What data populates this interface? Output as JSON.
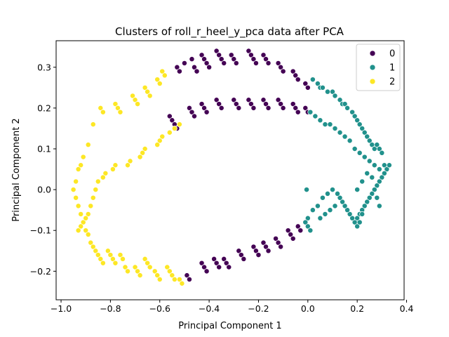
{
  "chart_data": {
    "type": "scatter",
    "title": "Clusters of roll_r_heel_y_pca data after PCA",
    "xlabel": "Principal Component 1",
    "ylabel": "Principal Component 2",
    "xlim": [
      -1.02,
      0.39
    ],
    "ylim": [
      -0.27,
      0.365
    ],
    "xticks": [
      -1.0,
      -0.8,
      -0.6,
      -0.4,
      -0.2,
      0.0,
      0.2,
      0.4
    ],
    "xtick_labels": [
      "−1.0",
      "−0.8",
      "−0.6",
      "−0.4",
      "−0.2",
      "0.0",
      "0.2",
      "0.4"
    ],
    "yticks": [
      -0.2,
      -0.1,
      0.0,
      0.1,
      0.2,
      0.3
    ],
    "ytick_labels": [
      "−0.2",
      "−0.1",
      "0.0",
      "0.1",
      "0.2",
      "0.3"
    ],
    "grid": false,
    "legend_position": "top-right",
    "series": [
      {
        "name": "0",
        "color": "#440154",
        "points": [
          [
            -0.53,
            0.3
          ],
          [
            -0.52,
            0.29
          ],
          [
            -0.5,
            0.31
          ],
          [
            -0.47,
            0.32
          ],
          [
            -0.46,
            0.3
          ],
          [
            -0.45,
            0.29
          ],
          [
            -0.43,
            0.33
          ],
          [
            -0.42,
            0.32
          ],
          [
            -0.41,
            0.31
          ],
          [
            -0.4,
            0.3
          ],
          [
            -0.37,
            0.34
          ],
          [
            -0.36,
            0.33
          ],
          [
            -0.35,
            0.32
          ],
          [
            -0.34,
            0.31
          ],
          [
            -0.31,
            0.33
          ],
          [
            -0.3,
            0.32
          ],
          [
            -0.29,
            0.31
          ],
          [
            -0.24,
            0.34
          ],
          [
            -0.23,
            0.33
          ],
          [
            -0.22,
            0.32
          ],
          [
            -0.21,
            0.31
          ],
          [
            -0.18,
            0.33
          ],
          [
            -0.17,
            0.32
          ],
          [
            -0.16,
            0.31
          ],
          [
            -0.12,
            0.31
          ],
          [
            -0.11,
            0.3
          ],
          [
            -0.1,
            0.29
          ],
          [
            -0.06,
            0.29
          ],
          [
            -0.05,
            0.28
          ],
          [
            -0.04,
            0.27
          ],
          [
            -0.01,
            0.26
          ],
          [
            0.0,
            0.25
          ],
          [
            -0.56,
            0.18
          ],
          [
            -0.55,
            0.17
          ],
          [
            -0.54,
            0.16
          ],
          [
            -0.53,
            0.15
          ],
          [
            -0.48,
            0.2
          ],
          [
            -0.47,
            0.19
          ],
          [
            -0.46,
            0.18
          ],
          [
            -0.43,
            0.21
          ],
          [
            -0.42,
            0.2
          ],
          [
            -0.41,
            0.19
          ],
          [
            -0.37,
            0.22
          ],
          [
            -0.36,
            0.21
          ],
          [
            -0.35,
            0.2
          ],
          [
            -0.3,
            0.22
          ],
          [
            -0.29,
            0.21
          ],
          [
            -0.28,
            0.2
          ],
          [
            -0.24,
            0.22
          ],
          [
            -0.23,
            0.21
          ],
          [
            -0.22,
            0.2
          ],
          [
            -0.18,
            0.22
          ],
          [
            -0.17,
            0.21
          ],
          [
            -0.16,
            0.2
          ],
          [
            -0.12,
            0.22
          ],
          [
            -0.11,
            0.21
          ],
          [
            -0.1,
            0.2
          ],
          [
            -0.06,
            0.21
          ],
          [
            -0.05,
            0.2
          ],
          [
            -0.04,
            0.19
          ],
          [
            -0.01,
            0.2
          ],
          [
            0.0,
            0.19
          ],
          [
            -0.49,
            -0.21
          ],
          [
            -0.48,
            -0.22
          ],
          [
            -0.43,
            -0.18
          ],
          [
            -0.42,
            -0.19
          ],
          [
            -0.41,
            -0.2
          ],
          [
            -0.38,
            -0.17
          ],
          [
            -0.37,
            -0.18
          ],
          [
            -0.36,
            -0.19
          ],
          [
            -0.34,
            -0.17
          ],
          [
            -0.33,
            -0.18
          ],
          [
            -0.32,
            -0.19
          ],
          [
            -0.28,
            -0.15
          ],
          [
            -0.27,
            -0.16
          ],
          [
            -0.26,
            -0.17
          ],
          [
            -0.22,
            -0.14
          ],
          [
            -0.21,
            -0.15
          ],
          [
            -0.2,
            -0.16
          ],
          [
            -0.18,
            -0.13
          ],
          [
            -0.17,
            -0.14
          ],
          [
            -0.16,
            -0.15
          ],
          [
            -0.13,
            -0.12
          ],
          [
            -0.12,
            -0.13
          ],
          [
            -0.11,
            -0.14
          ],
          [
            -0.08,
            -0.1
          ],
          [
            -0.07,
            -0.11
          ],
          [
            -0.06,
            -0.12
          ],
          [
            -0.04,
            -0.09
          ],
          [
            -0.03,
            -0.1
          ]
        ]
      },
      {
        "name": "1",
        "color": "#21918c",
        "points": [
          [
            0.02,
            0.27
          ],
          [
            0.04,
            0.26
          ],
          [
            0.05,
            0.25
          ],
          [
            0.06,
            0.25
          ],
          [
            0.08,
            0.24
          ],
          [
            0.1,
            0.24
          ],
          [
            0.11,
            0.23
          ],
          [
            0.13,
            0.22
          ],
          [
            0.14,
            0.21
          ],
          [
            0.15,
            0.21
          ],
          [
            0.16,
            0.2
          ],
          [
            0.18,
            0.19
          ],
          [
            0.19,
            0.18
          ],
          [
            0.2,
            0.17
          ],
          [
            0.21,
            0.16
          ],
          [
            0.22,
            0.15
          ],
          [
            0.23,
            0.14
          ],
          [
            0.24,
            0.13
          ],
          [
            0.25,
            0.12
          ],
          [
            0.26,
            0.11
          ],
          [
            0.27,
            0.1
          ],
          [
            0.28,
            0.11
          ],
          [
            0.29,
            0.1
          ],
          [
            0.3,
            0.09
          ],
          [
            0.01,
            0.19
          ],
          [
            0.03,
            0.18
          ],
          [
            0.05,
            0.17
          ],
          [
            0.07,
            0.16
          ],
          [
            0.09,
            0.16
          ],
          [
            0.11,
            0.15
          ],
          [
            0.13,
            0.14
          ],
          [
            0.15,
            0.13
          ],
          [
            0.17,
            0.12
          ],
          [
            0.19,
            0.1
          ],
          [
            0.21,
            0.09
          ],
          [
            0.23,
            0.08
          ],
          [
            0.25,
            0.07
          ],
          [
            0.27,
            0.06
          ],
          [
            0.29,
            0.05
          ],
          [
            0.31,
            0.06
          ],
          [
            0.32,
            0.05
          ],
          [
            0.33,
            0.06
          ],
          [
            0.31,
            0.04
          ],
          [
            0.3,
            0.03
          ],
          [
            0.29,
            0.02
          ],
          [
            0.28,
            0.01
          ],
          [
            0.27,
            0.0
          ],
          [
            0.26,
            -0.01
          ],
          [
            0.25,
            -0.02
          ],
          [
            0.24,
            -0.03
          ],
          [
            0.23,
            -0.04
          ],
          [
            0.22,
            -0.05
          ],
          [
            0.21,
            -0.06
          ],
          [
            0.2,
            -0.07
          ],
          [
            0.19,
            -0.08
          ],
          [
            0.18,
            -0.07
          ],
          [
            0.17,
            -0.06
          ],
          [
            0.16,
            -0.05
          ],
          [
            0.15,
            -0.04
          ],
          [
            0.14,
            -0.03
          ],
          [
            0.13,
            -0.02
          ],
          [
            0.12,
            -0.01
          ],
          [
            0.1,
            0.0
          ],
          [
            0.08,
            -0.01
          ],
          [
            0.06,
            -0.02
          ],
          [
            0.04,
            -0.04
          ],
          [
            0.02,
            -0.05
          ],
          [
            0.0,
            -0.07
          ],
          [
            -0.01,
            -0.08
          ],
          [
            0.0,
            -0.09
          ],
          [
            0.01,
            -0.1
          ],
          [
            0.05,
            -0.07
          ],
          [
            0.07,
            -0.06
          ],
          [
            0.09,
            -0.05
          ],
          [
            0.11,
            -0.04
          ],
          [
            0.2,
            0.0
          ],
          [
            0.22,
            0.02
          ],
          [
            0.24,
            0.04
          ],
          [
            0.26,
            0.03
          ],
          [
            0.28,
            -0.02
          ],
          [
            0.29,
            -0.04
          ],
          [
            -0.005,
            0.0
          ],
          [
            0.2,
            -0.09
          ],
          [
            0.21,
            -0.08
          ],
          [
            0.22,
            -0.06
          ]
        ]
      },
      {
        "name": "2",
        "color": "#fde725",
        "points": [
          [
            -0.59,
            0.29
          ],
          [
            -0.58,
            0.28
          ],
          [
            -0.61,
            0.27
          ],
          [
            -0.6,
            0.26
          ],
          [
            -0.66,
            0.25
          ],
          [
            -0.65,
            0.24
          ],
          [
            -0.64,
            0.23
          ],
          [
            -0.71,
            0.23
          ],
          [
            -0.7,
            0.22
          ],
          [
            -0.69,
            0.21
          ],
          [
            -0.78,
            0.21
          ],
          [
            -0.77,
            0.2
          ],
          [
            -0.76,
            0.19
          ],
          [
            -0.84,
            0.2
          ],
          [
            -0.83,
            0.19
          ],
          [
            -0.87,
            0.16
          ],
          [
            -0.89,
            0.11
          ],
          [
            -0.91,
            0.08
          ],
          [
            -0.92,
            0.06
          ],
          [
            -0.93,
            0.05
          ],
          [
            -0.94,
            0.02
          ],
          [
            -0.95,
            0.0
          ],
          [
            -0.94,
            -0.02
          ],
          [
            -0.93,
            -0.04
          ],
          [
            -0.92,
            -0.06
          ],
          [
            -0.91,
            -0.08
          ],
          [
            -0.9,
            -0.1
          ],
          [
            -0.89,
            -0.11
          ],
          [
            -0.88,
            -0.13
          ],
          [
            -0.87,
            -0.14
          ],
          [
            -0.86,
            -0.15
          ],
          [
            -0.85,
            -0.16
          ],
          [
            -0.84,
            -0.17
          ],
          [
            -0.83,
            -0.18
          ],
          [
            -0.81,
            -0.15
          ],
          [
            -0.8,
            -0.16
          ],
          [
            -0.79,
            -0.17
          ],
          [
            -0.78,
            -0.18
          ],
          [
            -0.76,
            -0.16
          ],
          [
            -0.75,
            -0.17
          ],
          [
            -0.74,
            -0.19
          ],
          [
            -0.73,
            -0.2
          ],
          [
            -0.7,
            -0.19
          ],
          [
            -0.69,
            -0.2
          ],
          [
            -0.68,
            -0.21
          ],
          [
            -0.66,
            -0.17
          ],
          [
            -0.65,
            -0.18
          ],
          [
            -0.64,
            -0.19
          ],
          [
            -0.62,
            -0.2
          ],
          [
            -0.61,
            -0.21
          ],
          [
            -0.6,
            -0.22
          ],
          [
            -0.57,
            -0.19
          ],
          [
            -0.56,
            -0.2
          ],
          [
            -0.55,
            -0.21
          ],
          [
            -0.54,
            -0.22
          ],
          [
            -0.52,
            -0.22
          ],
          [
            -0.51,
            -0.23
          ],
          [
            -0.52,
            0.16
          ],
          [
            -0.54,
            0.15
          ],
          [
            -0.56,
            0.14
          ],
          [
            -0.59,
            0.13
          ],
          [
            -0.6,
            0.12
          ],
          [
            -0.61,
            0.11
          ],
          [
            -0.66,
            0.1
          ],
          [
            -0.67,
            0.09
          ],
          [
            -0.68,
            0.08
          ],
          [
            -0.72,
            0.07
          ],
          [
            -0.73,
            0.06
          ],
          [
            -0.78,
            0.06
          ],
          [
            -0.79,
            0.05
          ],
          [
            -0.82,
            0.04
          ],
          [
            -0.83,
            0.03
          ],
          [
            -0.85,
            0.02
          ],
          [
            -0.86,
            0.0
          ],
          [
            -0.87,
            -0.02
          ],
          [
            -0.88,
            -0.04
          ],
          [
            -0.89,
            -0.06
          ],
          [
            -0.9,
            -0.07
          ],
          [
            -0.92,
            -0.09
          ],
          [
            -0.93,
            -0.1
          ]
        ]
      }
    ]
  }
}
